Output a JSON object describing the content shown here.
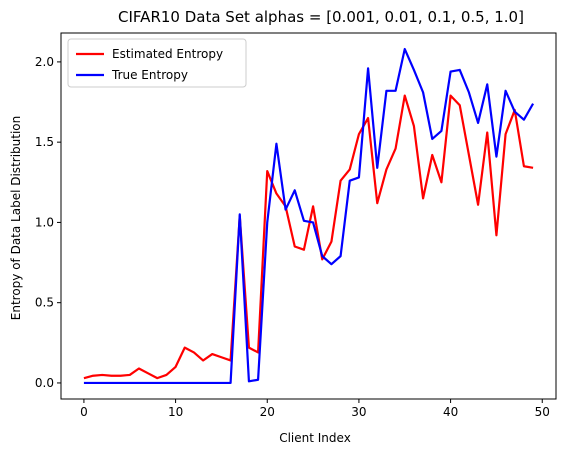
{
  "chart_data": {
    "type": "line",
    "title": "CIFAR10 Data Set alphas = [0.001, 0.01, 0.1, 0.5, 1.0]",
    "xlabel": "Client Index",
    "ylabel": "Entropy of Data Label Distribution",
    "xlim": [
      -2.5,
      51.5
    ],
    "ylim": [
      -0.1,
      2.18
    ],
    "xticks": [
      0,
      10,
      20,
      30,
      40,
      50
    ],
    "xtick_labels": [
      "0",
      "10",
      "20",
      "30",
      "40",
      "50"
    ],
    "yticks": [
      0.0,
      0.5,
      1.0,
      1.5,
      2.0
    ],
    "ytick_labels": [
      "0.0",
      "0.5",
      "1.0",
      "1.5",
      "2.0"
    ],
    "grid": false,
    "legend_position": "top-left",
    "x": [
      0,
      1,
      2,
      3,
      4,
      5,
      6,
      7,
      8,
      9,
      10,
      11,
      12,
      13,
      14,
      15,
      16,
      17,
      18,
      19,
      20,
      21,
      22,
      23,
      24,
      25,
      26,
      27,
      28,
      29,
      30,
      31,
      32,
      33,
      34,
      35,
      36,
      37,
      38,
      39,
      40,
      41,
      42,
      43,
      44,
      45,
      46,
      47,
      48,
      49
    ],
    "series": [
      {
        "name": "Estimated Entropy",
        "color": "#ff0000",
        "values": [
          0.03,
          0.045,
          0.05,
          0.045,
          0.045,
          0.05,
          0.09,
          0.06,
          0.03,
          0.05,
          0.1,
          0.22,
          0.19,
          0.14,
          0.18,
          0.16,
          0.14,
          1.04,
          0.22,
          0.19,
          1.32,
          1.18,
          1.1,
          0.85,
          0.83,
          1.1,
          0.77,
          0.88,
          1.26,
          1.33,
          1.55,
          1.65,
          1.12,
          1.33,
          1.46,
          1.79,
          1.6,
          1.15,
          1.42,
          1.25,
          1.79,
          1.73,
          1.42,
          1.11,
          1.56,
          0.92,
          1.55,
          1.7,
          1.35,
          1.34
        ]
      },
      {
        "name": "True Entropy",
        "color": "#0000ff",
        "values": [
          0,
          0,
          0,
          0,
          0,
          0,
          0,
          0,
          0,
          0,
          0,
          0,
          0,
          0,
          0,
          0,
          0,
          1.05,
          0.01,
          0.02,
          1.0,
          1.49,
          1.08,
          1.2,
          1.01,
          1.0,
          0.79,
          0.74,
          0.79,
          1.26,
          1.28,
          1.96,
          1.34,
          1.82,
          1.82,
          2.08,
          1.95,
          1.81,
          1.52,
          1.57,
          1.94,
          1.95,
          1.81,
          1.62,
          1.86,
          1.41,
          1.82,
          1.69,
          1.64,
          1.74
        ]
      }
    ]
  }
}
